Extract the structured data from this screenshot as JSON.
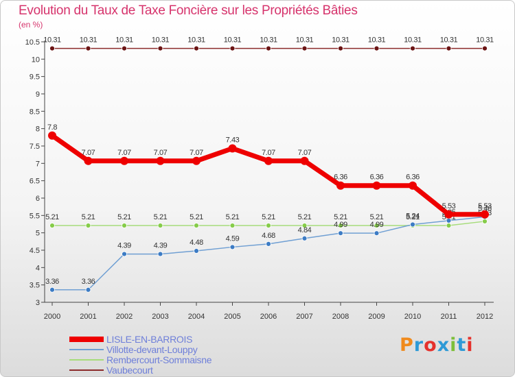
{
  "header": {
    "title": "Evolution du Taux de Taxe Foncière sur les Propriétés Bâties",
    "unit": "(en %)"
  },
  "logo": {
    "text": "Proxiti",
    "colors": [
      "#f08a1c",
      "#2e9ad6",
      "#e5322d",
      "#2e9ad6",
      "#7cbf3a",
      "#2e9ad6",
      "#e5322d"
    ]
  },
  "chart_data": {
    "type": "line",
    "title": "Evolution du Taux de Taxe Foncière sur les Propriétés Bâties",
    "ylabel": "(en %)",
    "xlabel": "",
    "categories": [
      "2000",
      "2001",
      "2002",
      "2003",
      "2004",
      "2005",
      "2006",
      "2007",
      "2008",
      "2009",
      "2010",
      "2011",
      "2012"
    ],
    "ylim": [
      3,
      10.5
    ],
    "yticks": [
      "3",
      "3.5",
      "4",
      "4.5",
      "5",
      "5.5",
      "6",
      "6.5",
      "7",
      "7.5",
      "8",
      "8.5",
      "9",
      "9.5",
      "10",
      "10.5"
    ],
    "grid": false,
    "legend_position": "bottom-left",
    "series": [
      {
        "name": "Vaubecourt",
        "color": "#8b2a2a",
        "marker": "#6b1414",
        "width": 1.5,
        "values": [
          10.31,
          10.31,
          10.31,
          10.31,
          10.31,
          10.31,
          10.31,
          10.31,
          10.31,
          10.31,
          10.31,
          10.31,
          10.31
        ],
        "labels": [
          "10.31",
          "10.31",
          "10.31",
          "10.31",
          "10.31",
          "10.31",
          "10.31",
          "10.31",
          "10.31",
          "10.31",
          "10.31",
          "10.31",
          "10.31"
        ]
      },
      {
        "name": "Rembercourt-Sommaisne",
        "color": "#a6dc7a",
        "marker": "#86cc4a",
        "width": 1.5,
        "values": [
          5.21,
          5.21,
          5.21,
          5.21,
          5.21,
          5.21,
          5.21,
          5.21,
          5.21,
          5.21,
          5.21,
          5.21,
          5.33
        ],
        "labels": [
          "5.21",
          "5.21",
          "5.21",
          "5.21",
          "5.21",
          "5.21",
          "5.21",
          "5.21",
          "5.21",
          "5.21",
          "5.21",
          "5.21",
          "5.33"
        ]
      },
      {
        "name": "Villotte-devant-Louppy",
        "color": "#6f9fd3",
        "marker": "#3d7cc4",
        "width": 1.5,
        "values": [
          3.36,
          3.36,
          4.39,
          4.39,
          4.48,
          4.59,
          4.68,
          4.84,
          4.99,
          4.99,
          5.24,
          5.35,
          5.46
        ],
        "labels": [
          "3.36",
          "3.36",
          "4.39",
          "4.39",
          "4.48",
          "4.59",
          "4.68",
          "4.84",
          "4.99",
          "4.99",
          "5.24",
          "5.35",
          "5.46"
        ]
      },
      {
        "name": "LISLE-EN-BARROIS",
        "color": "#ee0000",
        "marker": "#ee0000",
        "width": 7,
        "values": [
          7.8,
          7.07,
          7.07,
          7.07,
          7.07,
          7.43,
          7.07,
          7.07,
          6.36,
          6.36,
          6.36,
          5.53,
          5.53
        ],
        "labels": [
          "7.8",
          "7.07",
          "7.07",
          "7.07",
          "7.07",
          "7.43",
          "7.07",
          "7.07",
          "6.36",
          "6.36",
          "6.36",
          "5.53",
          "5.53"
        ]
      }
    ],
    "legend": [
      {
        "name": "LISLE-EN-BARROIS",
        "color": "#ee0000"
      },
      {
        "name": "Villotte-devant-Louppy",
        "color": "#6f9fd3"
      },
      {
        "name": "Rembercourt-Sommaisne",
        "color": "#a6dc7a"
      },
      {
        "name": "Vaubecourt",
        "color": "#8b2a2a"
      }
    ]
  }
}
